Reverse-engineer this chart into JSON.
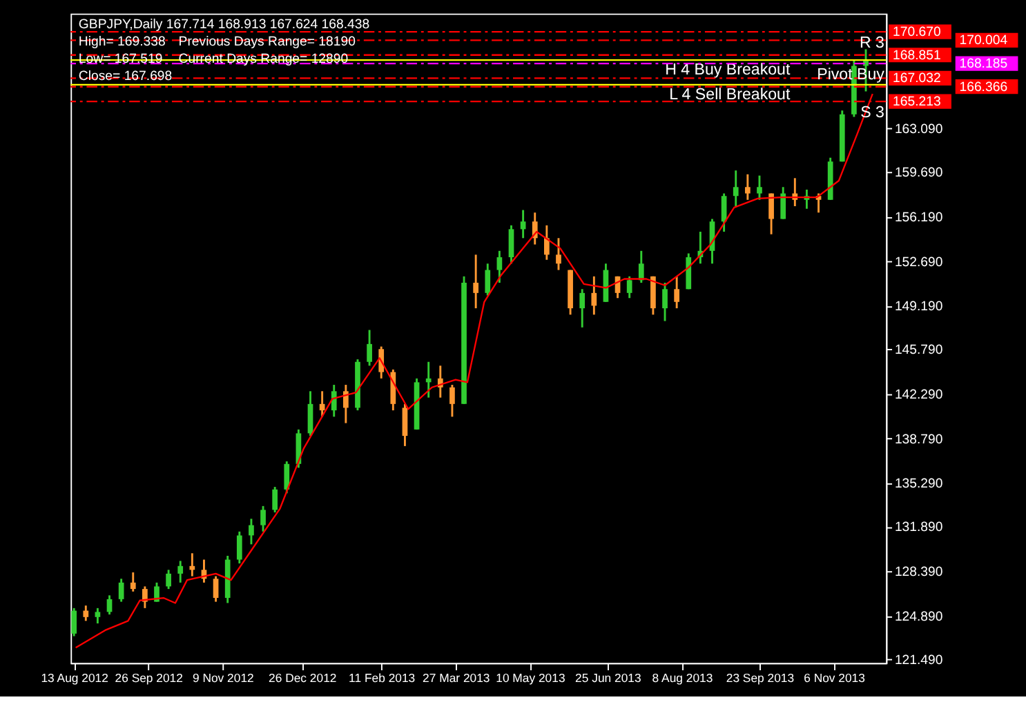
{
  "chart_data": {
    "type": "candlestick",
    "title": "GBPJPY,Daily  167.714 168.913 167.624 168.438",
    "annotations": [
      "High= 169.338",
      "Previous Days Range= 18190",
      "Low= 167.519",
      "Current Days Range= 12890",
      "Close= 167.698",
      {
        "text": "R 3",
        "x": "2013-12-06",
        "y": 170.67
      },
      {
        "text": "Pivot Buy",
        "x": "2013-12-06",
        "y": 168.185
      },
      {
        "text": "S 3",
        "x": "2013-12-06",
        "y": 165.213
      }
    ],
    "x": [
      "2012-08-13",
      "2012-08-20",
      "2012-08-27",
      "2012-09-03",
      "2012-09-10",
      "2012-09-17",
      "2012-09-24",
      "2012-10-01",
      "2012-10-08",
      "2012-10-15",
      "2012-10-22",
      "2012-10-29",
      "2012-11-05",
      "2012-11-12",
      "2012-11-19",
      "2012-11-26",
      "2012-12-03",
      "2012-12-10",
      "2012-12-17",
      "2012-12-24",
      "2012-12-31",
      "2013-01-07",
      "2013-01-14",
      "2013-01-21",
      "2013-01-28",
      "2013-02-04",
      "2013-02-11",
      "2013-02-18",
      "2013-02-25",
      "2013-03-04",
      "2013-03-11",
      "2013-03-18",
      "2013-03-25",
      "2013-04-01",
      "2013-04-08",
      "2013-04-15",
      "2013-04-22",
      "2013-04-29",
      "2013-05-06",
      "2013-05-13",
      "2013-05-20",
      "2013-05-27",
      "2013-06-03",
      "2013-06-10",
      "2013-06-17",
      "2013-06-24",
      "2013-07-01",
      "2013-07-08",
      "2013-07-15",
      "2013-07-22",
      "2013-07-29",
      "2013-08-05",
      "2013-08-12",
      "2013-08-19",
      "2013-08-26",
      "2013-09-02",
      "2013-09-09",
      "2013-09-16",
      "2013-09-23",
      "2013-09-30",
      "2013-10-07",
      "2013-10-14",
      "2013-10-21",
      "2013-10-28",
      "2013-11-04",
      "2013-11-11",
      "2013-11-18",
      "2013-11-25"
    ],
    "ohlc": [
      [
        123.5,
        125.5,
        123.3,
        125.3
      ],
      [
        125.3,
        125.7,
        124.5,
        124.8
      ],
      [
        124.8,
        125.5,
        124.3,
        125.2
      ],
      [
        125.2,
        126.5,
        125.0,
        126.2
      ],
      [
        126.2,
        127.8,
        126.0,
        127.5
      ],
      [
        127.5,
        128.3,
        126.8,
        127.0
      ],
      [
        127.0,
        127.2,
        125.5,
        126.0
      ],
      [
        126.0,
        127.5,
        126.0,
        127.2
      ],
      [
        127.2,
        128.5,
        127.0,
        128.2
      ],
      [
        128.2,
        129.2,
        127.5,
        128.8
      ],
      [
        128.8,
        129.8,
        128.0,
        128.5
      ],
      [
        128.5,
        129.3,
        127.5,
        127.8
      ],
      [
        127.8,
        128.0,
        126.0,
        126.3
      ],
      [
        126.3,
        129.6,
        125.9,
        129.3
      ],
      [
        129.3,
        131.5,
        129.0,
        131.2
      ],
      [
        131.2,
        132.5,
        130.5,
        132.0
      ],
      [
        132.0,
        133.5,
        131.5,
        133.2
      ],
      [
        133.2,
        135.0,
        133.0,
        134.8
      ],
      [
        134.8,
        137.0,
        134.5,
        136.8
      ],
      [
        136.8,
        139.5,
        136.5,
        139.2
      ],
      [
        139.2,
        142.5,
        139.0,
        141.5
      ],
      [
        141.5,
        142.5,
        140.5,
        141.0
      ],
      [
        141.0,
        143.0,
        140.5,
        142.5
      ],
      [
        142.5,
        143.0,
        140.0,
        141.2
      ],
      [
        141.2,
        145.0,
        141.0,
        144.8
      ],
      [
        144.8,
        147.3,
        144.5,
        146.2
      ],
      [
        145.8,
        146.0,
        143.5,
        144.0
      ],
      [
        144.0,
        144.2,
        141.0,
        141.5
      ],
      [
        141.2,
        141.5,
        138.2,
        139.0
      ],
      [
        139.5,
        143.5,
        139.5,
        143.2
      ],
      [
        143.2,
        144.8,
        142.0,
        143.5
      ],
      [
        143.5,
        144.5,
        142.0,
        142.8
      ],
      [
        142.8,
        143.0,
        140.5,
        141.5
      ],
      [
        141.5,
        151.5,
        141.5,
        151.0
      ],
      [
        151.0,
        153.2,
        149.0,
        150.2
      ],
      [
        150.2,
        152.5,
        150.0,
        152.0
      ],
      [
        152.0,
        153.5,
        151.0,
        153.0
      ],
      [
        153.0,
        155.5,
        152.5,
        155.2
      ],
      [
        155.2,
        156.7,
        154.5,
        155.8
      ],
      [
        155.8,
        156.5,
        154.0,
        154.5
      ],
      [
        154.5,
        155.5,
        152.8,
        153.2
      ],
      [
        153.2,
        154.5,
        152.0,
        152.5
      ],
      [
        152.0,
        152.0,
        148.5,
        149.0
      ],
      [
        149.0,
        150.5,
        147.5,
        150.2
      ],
      [
        150.2,
        151.5,
        148.5,
        149.2
      ],
      [
        149.5,
        152.5,
        149.5,
        152.0
      ],
      [
        151.5,
        151.5,
        149.8,
        150.2
      ],
      [
        150.2,
        151.5,
        149.8,
        151.2
      ],
      [
        151.2,
        153.5,
        151.0,
        152.5
      ],
      [
        151.5,
        151.5,
        148.5,
        149.0
      ],
      [
        149.0,
        151.0,
        148.0,
        150.5
      ],
      [
        150.5,
        151.5,
        149.0,
        149.5
      ],
      [
        150.5,
        153.3,
        150.5,
        153.0
      ],
      [
        153.0,
        155.0,
        152.5,
        153.5
      ],
      [
        153.5,
        156.0,
        152.5,
        155.8
      ],
      [
        155.8,
        158.0,
        155.0,
        157.8
      ],
      [
        157.8,
        159.8,
        157.0,
        158.5
      ],
      [
        158.5,
        159.5,
        157.5,
        158.0
      ],
      [
        158.0,
        159.4,
        157.5,
        158.5
      ],
      [
        158.0,
        158.0,
        154.8,
        156.0
      ],
      [
        156.0,
        158.5,
        156.0,
        158.0
      ],
      [
        158.0,
        159.2,
        157.0,
        157.5
      ],
      [
        157.5,
        158.3,
        156.8,
        157.8
      ],
      [
        157.8,
        158.0,
        156.5,
        157.5
      ],
      [
        157.5,
        160.8,
        157.5,
        160.5
      ],
      [
        160.5,
        164.5,
        160.5,
        164.2
      ],
      [
        164.2,
        168.5,
        164.0,
        168.0
      ],
      [
        168.0,
        169.3,
        166.0,
        168.4
      ]
    ],
    "colors": [
      "#32cd32",
      "#ff9933",
      "#32cd32",
      "#32cd32",
      "#32cd32",
      "#ff9933",
      "#ff9933",
      "#32cd32",
      "#32cd32",
      "#32cd32",
      "#ff9933",
      "#ff9933",
      "#ff9933",
      "#32cd32",
      "#32cd32",
      "#32cd32",
      "#32cd32",
      "#32cd32",
      "#32cd32",
      "#32cd32",
      "#32cd32",
      "#ff9933",
      "#32cd32",
      "#ff9933",
      "#32cd32",
      "#32cd32",
      "#ff9933",
      "#ff9933",
      "#ff9933",
      "#32cd32",
      "#32cd32",
      "#ff9933",
      "#ff9933",
      "#32cd32",
      "#ff9933",
      "#32cd32",
      "#32cd32",
      "#32cd32",
      "#32cd32",
      "#ff9933",
      "#ff9933",
      "#ff9933",
      "#ff9933",
      "#32cd32",
      "#ff9933",
      "#32cd32",
      "#ff9933",
      "#32cd32",
      "#32cd32",
      "#ff9933",
      "#32cd32",
      "#ff9933",
      "#32cd32",
      "#32cd32",
      "#32cd32",
      "#32cd32",
      "#32cd32",
      "#ff9933",
      "#32cd32",
      "#ff9933",
      "#32cd32",
      "#ff9933",
      "#32cd32",
      "#ff9933",
      "#32cd32",
      "#32cd32",
      "#32cd32",
      "#32cd32"
    ],
    "series": [
      {
        "type": "line",
        "color": "#ff0000",
        "x": [
          "2012-08-14",
          "2012-09-01",
          "2012-09-14",
          "2012-09-21",
          "2012-10-05",
          "2012-10-12",
          "2012-10-19",
          "2012-11-05",
          "2012-11-14",
          "2012-11-29",
          "2012-12-13",
          "2012-12-27",
          "2013-01-13",
          "2013-01-27",
          "2013-02-10",
          "2013-02-27",
          "2013-03-13",
          "2013-03-27",
          "2013-04-03",
          "2013-04-13",
          "2013-04-23",
          "2013-05-14",
          "2013-05-28",
          "2013-06-11",
          "2013-06-24",
          "2013-07-05",
          "2013-07-18",
          "2013-07-29",
          "2013-08-12",
          "2013-08-25",
          "2013-09-08",
          "2013-09-22",
          "2013-10-06",
          "2013-10-27",
          "2013-11-09",
          "2013-11-20",
          "2013-11-29"
        ],
        "values": [
          122.4,
          123.8,
          124.5,
          126.1,
          126.3,
          125.9,
          127.7,
          128.2,
          127.7,
          130.6,
          133.3,
          138.0,
          141.9,
          142.4,
          145.1,
          141.1,
          142.8,
          143.4,
          143.2,
          149.5,
          151.6,
          155.0,
          153.7,
          150.9,
          150.6,
          151.3,
          151.3,
          150.8,
          152.2,
          154.0,
          156.9,
          157.6,
          157.7,
          157.7,
          159.0,
          162.7,
          165.8
        ]
      }
    ],
    "ref_lines": [
      {
        "axis": "y",
        "value": 170.67,
        "label": "170.670",
        "color": "#ff0000",
        "line_style": "dashed"
      },
      {
        "axis": "y",
        "value": 170.004,
        "label": "170.004",
        "color": "#ff0000",
        "line_style": "dashed"
      },
      {
        "axis": "y",
        "value": 168.851,
        "label": "168.851",
        "color": "#ff0000",
        "line_style": "dashed"
      },
      {
        "axis": "y",
        "value": 168.45,
        "label": "H 4 Buy Breakout",
        "color": "#ffff00",
        "line_style": "solid"
      },
      {
        "axis": "y",
        "value": 168.185,
        "label": "168.185",
        "color": "#ff00ff",
        "line_style": "dashed"
      },
      {
        "axis": "y",
        "value": 167.032,
        "label": "167.032",
        "color": "#ff0000",
        "line_style": "dashed"
      },
      {
        "axis": "y",
        "value": 166.52,
        "label": "L 4 Sell Breakout",
        "color": "#ffff00",
        "line_style": "solid"
      },
      {
        "axis": "y",
        "value": 166.366,
        "label": "166.366",
        "color": "#ff0000",
        "line_style": "dashed"
      },
      {
        "axis": "y",
        "value": 165.213,
        "label": "165.213",
        "color": "#ff0000",
        "line_style": "dashed"
      }
    ],
    "xlim": [
      "2012-08-11",
      "2013-12-07"
    ],
    "xticks": [
      {
        "value": "2012-08-13",
        "label": "13 Aug 2012"
      },
      {
        "value": "2012-09-26",
        "label": "26 Sep 2012"
      },
      {
        "value": "2012-11-09",
        "label": "9 Nov 2012"
      },
      {
        "value": "2012-12-26",
        "label": "26 Dec 2012"
      },
      {
        "value": "2013-02-11",
        "label": "11 Feb 2013"
      },
      {
        "value": "2013-03-27",
        "label": "27 Mar 2013"
      },
      {
        "value": "2013-05-10",
        "label": "10 May 2013"
      },
      {
        "value": "2013-06-25",
        "label": "25 Jun 2013"
      },
      {
        "value": "2013-08-08",
        "label": "8 Aug 2013"
      },
      {
        "value": "2013-09-23",
        "label": "23 Sep 2013"
      },
      {
        "value": "2013-11-06",
        "label": "6 Nov 2013"
      }
    ],
    "ylim": [
      121.2,
      172.1
    ],
    "yticks": [
      {
        "value": 121.49,
        "label": "121.490"
      },
      {
        "value": 124.89,
        "label": "124.890"
      },
      {
        "value": 128.39,
        "label": "128.390"
      },
      {
        "value": 131.89,
        "label": "131.890"
      },
      {
        "value": 135.29,
        "label": "135.290"
      },
      {
        "value": 138.79,
        "label": "138.790"
      },
      {
        "value": 142.29,
        "label": "142.290"
      },
      {
        "value": 145.79,
        "label": "145.790"
      },
      {
        "value": 149.19,
        "label": "149.190"
      },
      {
        "value": 152.69,
        "label": "152.690"
      },
      {
        "value": 156.19,
        "label": "156.190"
      },
      {
        "value": 159.69,
        "label": "159.690"
      },
      {
        "value": 163.09,
        "label": "163.090"
      }
    ],
    "grid": false
  }
}
